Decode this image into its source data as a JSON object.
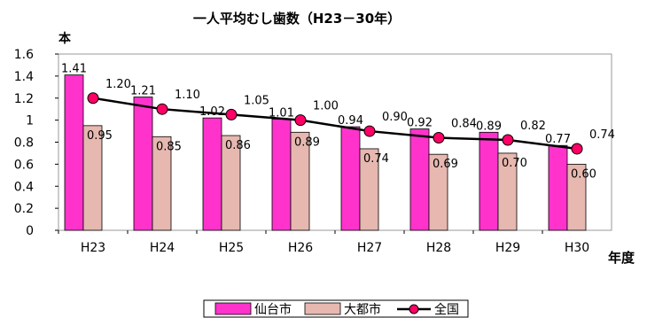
{
  "chart_data": {
    "type": "bar",
    "title": "一人平均むし歯数（H23－30年）",
    "ylabel": "本",
    "xlabel": "年度",
    "ylim": [
      0,
      1.6
    ],
    "yticks": [
      "0",
      "0.2",
      "0.4",
      "0.6",
      "0.8",
      "1",
      "1.2",
      "1.4",
      "1.6"
    ],
    "grid": false,
    "legend_position": "bottom",
    "categories": [
      "H23",
      "H24",
      "H25",
      "H26",
      "H27",
      "H28",
      "H29",
      "H30"
    ],
    "series": [
      {
        "name": "仙台市",
        "kind": "bar",
        "color": "#ff33cc",
        "values": [
          1.41,
          1.21,
          1.02,
          1.01,
          0.94,
          0.92,
          0.89,
          0.77
        ],
        "labels": [
          "1.41",
          "1.21",
          "1.02",
          "1.01",
          "0.94",
          "0.92",
          "0.89",
          "0.77"
        ]
      },
      {
        "name": "大都市",
        "kind": "bar",
        "color": "#e6b8b0",
        "values": [
          0.95,
          0.85,
          0.86,
          0.89,
          0.74,
          0.69,
          0.7,
          0.6
        ],
        "labels": [
          "0.95",
          "0.85",
          "0.86",
          "0.89",
          "0.74",
          "0.69",
          "0.70",
          "0.60"
        ]
      },
      {
        "name": "全国",
        "kind": "line",
        "color": "#000000",
        "marker_color": "#ff0066",
        "values": [
          1.2,
          1.1,
          1.05,
          1.0,
          0.9,
          0.84,
          0.82,
          0.74
        ],
        "labels": [
          "1.20",
          "1.10",
          "1.05",
          "1.00",
          "0.90",
          "0.84",
          "0.82",
          "0.74"
        ]
      }
    ]
  }
}
